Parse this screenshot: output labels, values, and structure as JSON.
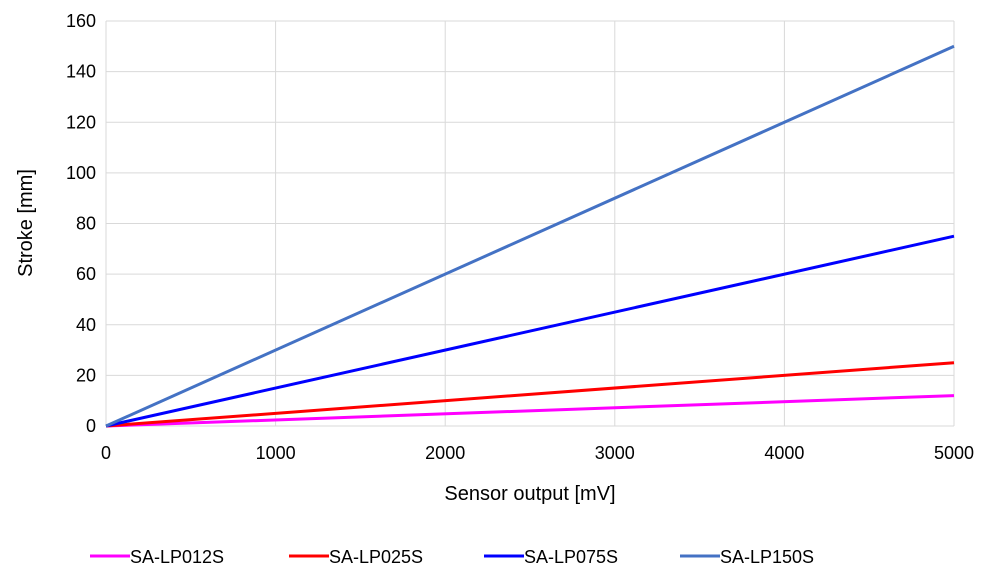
{
  "chart_data": {
    "type": "line",
    "title": "",
    "xlabel": "Sensor output [mV]",
    "ylabel": "Stroke [mm]",
    "xlim": [
      0,
      5000
    ],
    "ylim": [
      0,
      160
    ],
    "xticks": [
      0,
      1000,
      2000,
      3000,
      4000,
      5000
    ],
    "yticks": [
      0,
      20,
      40,
      60,
      80,
      100,
      120,
      140,
      160
    ],
    "grid": true,
    "legend_position": "bottom",
    "series": [
      {
        "name": "SA-LP012S",
        "color": "#ff00ff",
        "x": [
          0,
          5000
        ],
        "y": [
          0,
          12
        ]
      },
      {
        "name": "SA-LP025S",
        "color": "#ff0000",
        "x": [
          0,
          5000
        ],
        "y": [
          0,
          25
        ]
      },
      {
        "name": "SA-LP075S",
        "color": "#0000ff",
        "x": [
          0,
          5000
        ],
        "y": [
          0,
          75
        ]
      },
      {
        "name": "SA-LP150S",
        "color": "#4472c4",
        "x": [
          0,
          5000
        ],
        "y": [
          0,
          150
        ]
      }
    ]
  }
}
